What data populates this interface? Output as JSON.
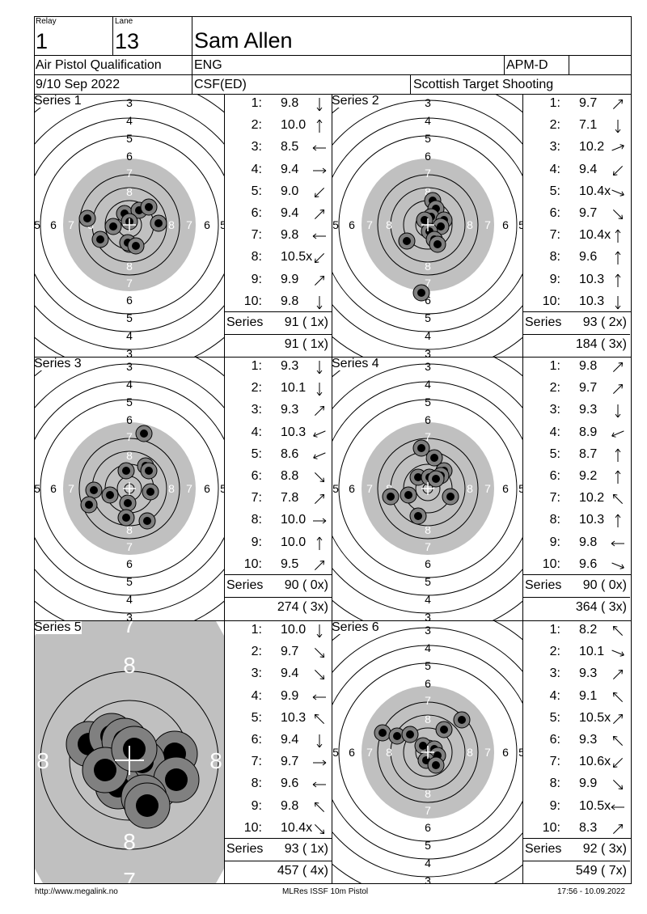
{
  "header": {
    "relay_label": "Relay",
    "relay": "1",
    "lane_label": "Lane",
    "lane": "13",
    "name": "Sam Allen",
    "event": "Air Pistol Qualification",
    "nation": "ENG",
    "category": "APM-D",
    "date": "9/10 Sep 2022",
    "club": "CSF(ED)",
    "organizer": "Scottish Target Shooting"
  },
  "series_sum_label": "Series",
  "series": [
    {
      "title": "Series 1",
      "total": "91 ( 1x)",
      "cumulative": "91 ( 1x)",
      "zoom": false,
      "shots": [
        {
          "n": "1:",
          "v": "9.8",
          "d": "s"
        },
        {
          "n": "2:",
          "v": "10.0",
          "d": "n"
        },
        {
          "n": "3:",
          "v": "8.5",
          "d": "w"
        },
        {
          "n": "4:",
          "v": "9.4",
          "d": "e"
        },
        {
          "n": "5:",
          "v": "9.0",
          "d": "sw"
        },
        {
          "n": "6:",
          "v": "9.4",
          "d": "ne"
        },
        {
          "n": "7:",
          "v": "9.8",
          "d": "w"
        },
        {
          "n": "8:",
          "v": "10.5x",
          "d": "sw"
        },
        {
          "n": "9:",
          "v": "9.9",
          "d": "ne"
        },
        {
          "n": "10:",
          "v": "9.8",
          "d": "s"
        }
      ]
    },
    {
      "title": "Series 2",
      "total": "93 ( 2x)",
      "cumulative": "184 ( 3x)",
      "zoom": false,
      "shots": [
        {
          "n": "1:",
          "v": "9.7",
          "d": "ne"
        },
        {
          "n": "2:",
          "v": "7.1",
          "d": "s"
        },
        {
          "n": "3:",
          "v": "10.2",
          "d": "ene"
        },
        {
          "n": "4:",
          "v": "9.4",
          "d": "sw"
        },
        {
          "n": "5:",
          "v": "10.4x",
          "d": "ese"
        },
        {
          "n": "6:",
          "v": "9.7",
          "d": "se"
        },
        {
          "n": "7:",
          "v": "10.4x",
          "d": "n"
        },
        {
          "n": "8:",
          "v": "9.6",
          "d": "n"
        },
        {
          "n": "9:",
          "v": "10.3",
          "d": "n"
        },
        {
          "n": "10:",
          "v": "10.3",
          "d": "s"
        }
      ]
    },
    {
      "title": "Series 3",
      "total": "90 ( 0x)",
      "cumulative": "274 ( 3x)",
      "zoom": false,
      "shots": [
        {
          "n": "1:",
          "v": "9.3",
          "d": "s"
        },
        {
          "n": "2:",
          "v": "10.1",
          "d": "s"
        },
        {
          "n": "3:",
          "v": "9.3",
          "d": "ne"
        },
        {
          "n": "4:",
          "v": "10.3",
          "d": "wsw"
        },
        {
          "n": "5:",
          "v": "8.6",
          "d": "wsw"
        },
        {
          "n": "6:",
          "v": "8.8",
          "d": "se"
        },
        {
          "n": "7:",
          "v": "7.8",
          "d": "ne"
        },
        {
          "n": "8:",
          "v": "10.0",
          "d": "e"
        },
        {
          "n": "9:",
          "v": "10.0",
          "d": "n"
        },
        {
          "n": "10:",
          "v": "9.5",
          "d": "ne"
        }
      ]
    },
    {
      "title": "Series 4",
      "total": "90 ( 0x)",
      "cumulative": "364 ( 3x)",
      "zoom": false,
      "shots": [
        {
          "n": "1:",
          "v": "9.8",
          "d": "ne"
        },
        {
          "n": "2:",
          "v": "9.7",
          "d": "ne"
        },
        {
          "n": "3:",
          "v": "9.3",
          "d": "s"
        },
        {
          "n": "4:",
          "v": "8.9",
          "d": "wsw"
        },
        {
          "n": "5:",
          "v": "8.7",
          "d": "n"
        },
        {
          "n": "6:",
          "v": "9.2",
          "d": "n"
        },
        {
          "n": "7:",
          "v": "10.2",
          "d": "nw"
        },
        {
          "n": "8:",
          "v": "10.3",
          "d": "n"
        },
        {
          "n": "9:",
          "v": "9.8",
          "d": "w"
        },
        {
          "n": "10:",
          "v": "9.6",
          "d": "ese"
        }
      ]
    },
    {
      "title": "Series 5",
      "total": "93 ( 1x)",
      "cumulative": "457 ( 4x)",
      "zoom": true,
      "shots": [
        {
          "n": "1:",
          "v": "10.0",
          "d": "s"
        },
        {
          "n": "2:",
          "v": "9.7",
          "d": "se"
        },
        {
          "n": "3:",
          "v": "9.4",
          "d": "se"
        },
        {
          "n": "4:",
          "v": "9.9",
          "d": "w"
        },
        {
          "n": "5:",
          "v": "10.3",
          "d": "nw"
        },
        {
          "n": "6:",
          "v": "9.4",
          "d": "s"
        },
        {
          "n": "7:",
          "v": "9.7",
          "d": "e"
        },
        {
          "n": "8:",
          "v": "9.6",
          "d": "w"
        },
        {
          "n": "9:",
          "v": "9.8",
          "d": "nw"
        },
        {
          "n": "10:",
          "v": "10.4x",
          "d": "se"
        }
      ]
    },
    {
      "title": "Series 6",
      "total": "92 ( 3x)",
      "cumulative": "549 ( 7x)",
      "zoom": false,
      "shots": [
        {
          "n": "1:",
          "v": "8.2",
          "d": "nw"
        },
        {
          "n": "2:",
          "v": "10.1",
          "d": "ese"
        },
        {
          "n": "3:",
          "v": "9.3",
          "d": "ne"
        },
        {
          "n": "4:",
          "v": "9.1",
          "d": "nw"
        },
        {
          "n": "5:",
          "v": "10.5x",
          "d": "ne"
        },
        {
          "n": "6:",
          "v": "9.3",
          "d": "nw"
        },
        {
          "n": "7:",
          "v": "10.6x",
          "d": "sw"
        },
        {
          "n": "8:",
          "v": "9.9",
          "d": "se"
        },
        {
          "n": "9:",
          "v": "10.5x",
          "d": "w"
        },
        {
          "n": "10:",
          "v": "8.3",
          "d": "ne"
        }
      ]
    }
  ],
  "target_labels": {
    "top": [
      "3",
      "4",
      "5",
      "6",
      "7",
      "8"
    ],
    "bottom": [
      "8",
      "7",
      "6",
      "5",
      "4",
      "3"
    ],
    "left": [
      "5",
      "6",
      "7",
      "8"
    ],
    "right": [
      "8",
      "7",
      "6",
      "5"
    ],
    "zoom_top": "7",
    "zoom_upper": "8",
    "zoom_left": "8",
    "zoom_right": "8",
    "zoom_lower": "8",
    "zoom_bottom": "7"
  },
  "footer": {
    "url": "http://www.megalink.no",
    "software": "MLRes ISSF 10m Pistol",
    "timestamp": "17:56 - 10.09.2022"
  },
  "colors": {
    "black_ring": "#c0c0c0",
    "shot_outer": "#808080",
    "shot_inner": "#000000"
  }
}
